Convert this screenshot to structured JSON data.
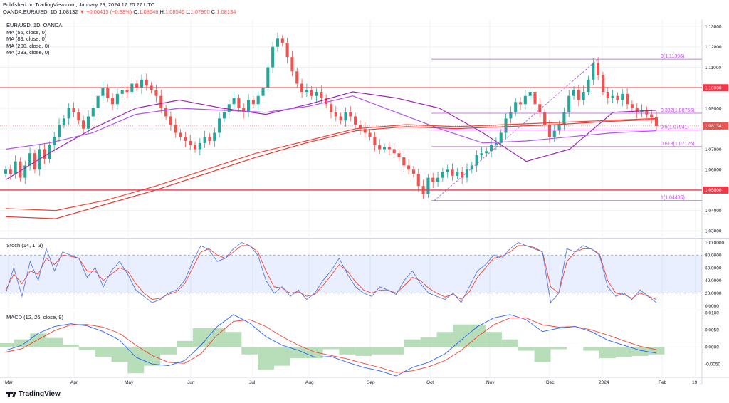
{
  "header": {
    "published": "Published on TradingView.com, January 29, 2024 17:20:27 UTC",
    "symbol": "OANDA:EUR/USD, 1D",
    "last": "1.08132",
    "change": "▼ −0.00415 (−0.38%)",
    "ohlc": [
      {
        "k": "O:",
        "v": "1.08546"
      },
      {
        "k": "H:",
        "v": "1.08546"
      },
      {
        "k": "L:",
        "v": "1.07960"
      },
      {
        "k": "C:",
        "v": "1.08134"
      }
    ]
  },
  "legend": {
    "title": "EUR/USD, 1D, OANDA",
    "items": [
      "MA (55, close, 0)",
      "MA (89, close, 0)",
      "MA (200, close, 0)",
      "MA (233, close, 0)"
    ]
  },
  "branding": {
    "logo_text": "TradingView"
  },
  "colors": {
    "up": "#26a69a",
    "down": "#ef5350",
    "ma55": "#9c27b0",
    "ma89": "#b053f0",
    "ma200": "#f44336",
    "ma233": "#e53935",
    "level": "#f23645",
    "fib": "#b44fe0",
    "stoch_k": "#5b7bdc",
    "stoch_d": "#f44336",
    "macd": "#2962ff",
    "signal": "#f44336",
    "hist": "#a5d6a7",
    "grid": "#eef0f3",
    "axis_text": "#131722"
  },
  "chart_data": [
    {
      "type": "candlestick",
      "title": "EUR/USD, 1D, OANDA",
      "x_ticks": [
        "Mar",
        "Apr",
        "May",
        "Jun",
        "Jul",
        "Aug",
        "Sep",
        "Oct",
        "Nov",
        "Dec",
        "2024",
        "Feb",
        "19"
      ],
      "y_ticks": [
        1.13,
        1.12,
        1.11,
        1.1,
        1.09,
        1.08,
        1.07,
        1.06,
        1.05,
        1.04,
        1.03
      ],
      "y_tick_labels": [
        "1.13000",
        "1.12000",
        "1.11000",
        "1.10000",
        "1.09000",
        "1.08000",
        "1.07000",
        "1.06000",
        "1.05000",
        "1.04000",
        "1.03000"
      ],
      "ylim": [
        1.027,
        1.1335
      ],
      "close_series_approx": [
        1.06,
        1.058,
        1.064,
        1.056,
        1.062,
        1.068,
        1.06,
        1.07,
        1.065,
        1.072,
        1.076,
        1.082,
        1.085,
        1.09,
        1.088,
        1.084,
        1.08,
        1.086,
        1.09,
        1.096,
        1.1,
        1.095,
        1.092,
        1.097,
        1.099,
        1.098,
        1.102,
        1.1,
        1.104,
        1.101,
        1.099,
        1.096,
        1.09,
        1.086,
        1.082,
        1.078,
        1.076,
        1.074,
        1.072,
        1.07,
        1.073,
        1.076,
        1.074,
        1.078,
        1.085,
        1.088,
        1.092,
        1.095,
        1.09,
        1.088,
        1.094,
        1.092,
        1.096,
        1.1,
        1.11,
        1.12,
        1.124,
        1.122,
        1.115,
        1.108,
        1.102,
        1.098,
        1.099,
        1.096,
        1.098,
        1.095,
        1.092,
        1.088,
        1.086,
        1.084,
        1.088,
        1.086,
        1.082,
        1.08,
        1.078,
        1.076,
        1.072,
        1.07,
        1.071,
        1.07,
        1.068,
        1.066,
        1.062,
        1.06,
        1.058,
        1.052,
        1.048,
        1.056,
        1.054,
        1.056,
        1.059,
        1.06,
        1.057,
        1.059,
        1.056,
        1.06,
        1.062,
        1.067,
        1.068,
        1.069,
        1.072,
        1.073,
        1.078,
        1.085,
        1.088,
        1.093,
        1.092,
        1.096,
        1.098,
        1.092,
        1.088,
        1.082,
        1.076,
        1.079,
        1.082,
        1.088,
        1.096,
        1.099,
        1.094,
        1.098,
        1.104,
        1.112,
        1.106,
        1.098,
        1.095,
        1.096,
        1.094,
        1.097,
        1.092,
        1.09,
        1.088,
        1.089,
        1.087,
        1.0855,
        1.0813
      ],
      "lines": [
        {
          "label": "1.10000",
          "value": 1.1,
          "kind": "horizontal-level"
        },
        {
          "label": "1.05000",
          "value": 1.05,
          "kind": "horizontal-level"
        }
      ],
      "fib_levels": [
        {
          "label": "0(1.11396)",
          "value": 1.11396
        },
        {
          "label": "0.382(1.08756)",
          "value": 1.08756
        },
        {
          "label": "0.5(1.07941)",
          "value": 1.07941
        },
        {
          "label": "0.618(1.07125)",
          "value": 1.07125
        },
        {
          "label": "1(1.04485)",
          "value": 1.04485
        }
      ],
      "price_label": "1.08134",
      "ma_series": [
        {
          "name": "MA (55, close, 0)",
          "approx": [
            1.055,
            1.068,
            1.08,
            1.09,
            1.094,
            1.09,
            1.087,
            1.092,
            1.098,
            1.095,
            1.09,
            1.078,
            1.064,
            1.07,
            1.088,
            1.089
          ]
        },
        {
          "name": "MA (89, close, 0)",
          "approx": [
            1.07,
            1.073,
            1.078,
            1.087,
            1.09,
            1.089,
            1.088,
            1.091,
            1.096,
            1.088,
            1.08,
            1.073,
            1.074,
            1.076,
            1.078,
            1.079
          ]
        },
        {
          "name": "MA (200, close, 0)",
          "approx": [
            1.041,
            1.04,
            1.045,
            1.052,
            1.06,
            1.068,
            1.074,
            1.08,
            1.082,
            1.081,
            1.082,
            1.083,
            1.084,
            1.085
          ]
        },
        {
          "name": "MA (233, close, 0)",
          "approx": [
            1.037,
            1.036,
            1.043,
            1.05,
            1.058,
            1.066,
            1.073,
            1.079,
            1.081,
            1.08,
            1.081,
            1.082,
            1.0835,
            1.0845
          ]
        }
      ]
    },
    {
      "type": "line",
      "title": "Stoch (14, 1, 3)",
      "y_tick_labels": [
        "100.0000",
        "80.0000",
        "60.0000",
        "40.0000",
        "20.0000",
        "0.0000"
      ],
      "ylim": [
        -5,
        105
      ],
      "bands": [
        80,
        20
      ],
      "series": [
        {
          "name": "%K",
          "values": [
            20,
            60,
            15,
            70,
            40,
            90,
            55,
            85,
            80,
            75,
            45,
            60,
            30,
            55,
            70,
            50,
            25,
            15,
            5,
            10,
            20,
            25,
            40,
            70,
            95,
            88,
            70,
            75,
            90,
            100,
            95,
            80,
            40,
            20,
            30,
            15,
            25,
            10,
            20,
            40,
            55,
            75,
            50,
            30,
            20,
            15,
            30,
            25,
            18,
            40,
            55,
            35,
            20,
            15,
            10,
            20,
            5,
            30,
            55,
            65,
            80,
            75,
            90,
            100,
            95,
            90,
            85,
            5,
            20,
            90,
            85,
            95,
            90,
            80,
            30,
            15,
            20,
            10,
            25,
            15,
            5
          ]
        },
        {
          "name": "%D",
          "values": [
            25,
            50,
            35,
            55,
            50,
            75,
            65,
            80,
            78,
            75,
            55,
            55,
            40,
            50,
            60,
            55,
            35,
            20,
            10,
            12,
            18,
            22,
            35,
            60,
            85,
            90,
            80,
            75,
            85,
            95,
            95,
            85,
            55,
            30,
            28,
            20,
            22,
            15,
            18,
            32,
            48,
            65,
            55,
            38,
            25,
            20,
            25,
            25,
            20,
            32,
            45,
            40,
            28,
            20,
            14,
            18,
            10,
            22,
            45,
            60,
            75,
            78,
            85,
            95,
            95,
            92,
            85,
            30,
            20,
            70,
            85,
            90,
            90,
            82,
            40,
            20,
            18,
            12,
            20,
            15,
            10
          ]
        }
      ]
    },
    {
      "type": "line",
      "title": "MACD (12, 26, close, 9)",
      "y_tick_labels": [
        "0.0100",
        "0.0050",
        "0.0000",
        "-0.0050"
      ],
      "ylim": [
        -0.0085,
        0.0105
      ],
      "series": [
        {
          "name": "MACD",
          "values": [
            -0.001,
            0.0005,
            0.004,
            0.006,
            0.0068,
            0.0062,
            0.0045,
            0.002,
            -0.003,
            -0.005,
            -0.0055,
            -0.004,
            0.0005,
            0.006,
            0.0095,
            0.007,
            0.003,
            0.0005,
            -0.001,
            -0.003,
            -0.0028,
            -0.0045,
            -0.006,
            -0.007,
            -0.0085,
            -0.006,
            -0.0045,
            -0.002,
            0.002,
            0.006,
            0.0085,
            0.0095,
            0.008,
            0.0045,
            0.0055,
            0.006,
            0.0045,
            0.002,
            0.0005,
            -0.001,
            -0.0018
          ]
        },
        {
          "name": "Signal",
          "values": [
            -0.0015,
            -0.0005,
            0.0022,
            0.0048,
            0.0065,
            0.0066,
            0.0058,
            0.004,
            0.0005,
            -0.0025,
            -0.0045,
            -0.0048,
            -0.002,
            0.0035,
            0.0075,
            0.008,
            0.006,
            0.003,
            0.0005,
            -0.0015,
            -0.0025,
            -0.0035,
            -0.0048,
            -0.006,
            -0.0075,
            -0.007,
            -0.0058,
            -0.004,
            -0.001,
            0.003,
            0.0065,
            0.0085,
            0.0085,
            0.0065,
            0.0058,
            0.006,
            0.005,
            0.0035,
            0.0018,
            0.0002,
            -0.0008
          ]
        }
      ]
    }
  ]
}
